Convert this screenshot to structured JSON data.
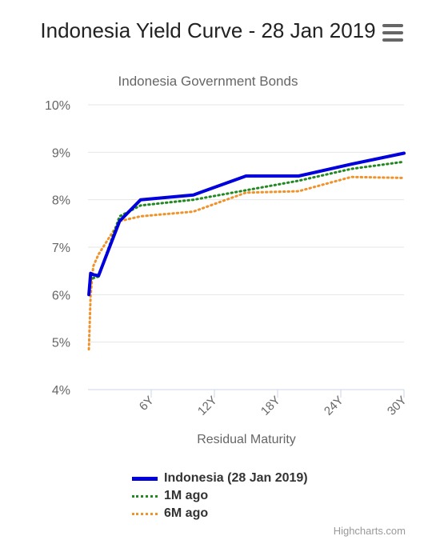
{
  "chart_data": {
    "type": "line",
    "title": "Indonesia Yield Curve - 28 Jan 2019",
    "subtitle": "Indonesia Government Bonds",
    "xlabel": "Residual Maturity",
    "ylabel": "",
    "xlim": [
      0,
      30
    ],
    "ylim": [
      4,
      10
    ],
    "x_ticks": [
      6,
      12,
      18,
      24,
      30
    ],
    "x_tick_labels": [
      "6Y",
      "12Y",
      "18Y",
      "24Y",
      "30Y"
    ],
    "y_ticks": [
      4,
      5,
      6,
      7,
      8,
      9,
      10
    ],
    "y_tick_labels": [
      "4%",
      "5%",
      "6%",
      "7%",
      "8%",
      "9%",
      "10%"
    ],
    "grid": true,
    "legend_position": "bottom",
    "series": [
      {
        "name": "Indonesia (28 Jan 2019)",
        "color": "#0000dd",
        "style": "solid",
        "x": [
          0.08,
          0.25,
          0.5,
          1,
          3,
          5,
          10,
          15,
          20,
          25,
          30
        ],
        "y": [
          6.0,
          6.45,
          6.42,
          6.4,
          7.55,
          8.0,
          8.1,
          8.5,
          8.5,
          8.75,
          8.98
        ]
      },
      {
        "name": "1M ago",
        "color": "#228822",
        "style": "dotted",
        "x": [
          0.08,
          0.25,
          0.5,
          1,
          3,
          5,
          10,
          15,
          20,
          25,
          30
        ],
        "y": [
          6.0,
          6.3,
          6.35,
          6.38,
          7.65,
          7.88,
          8.0,
          8.2,
          8.4,
          8.65,
          8.8
        ]
      },
      {
        "name": "6M ago",
        "color": "#f0932b",
        "style": "dotted",
        "x": [
          0.08,
          0.25,
          0.5,
          1,
          3,
          5,
          10,
          15,
          20,
          25,
          30
        ],
        "y": [
          4.85,
          6.0,
          6.6,
          6.85,
          7.55,
          7.65,
          7.75,
          8.15,
          8.18,
          8.48,
          8.46
        ]
      }
    ]
  },
  "credits": "Highcharts.com"
}
